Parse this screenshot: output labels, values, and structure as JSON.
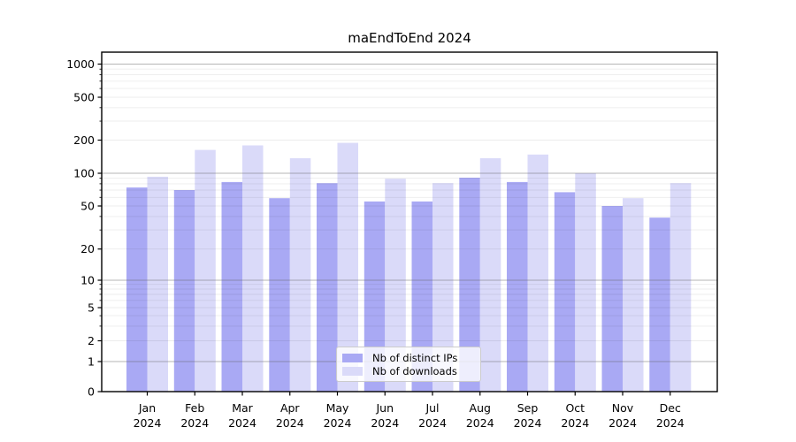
{
  "chart_data": {
    "type": "bar",
    "title": "maEndToEnd 2024",
    "categories": [
      "Jan",
      "Feb",
      "Mar",
      "Apr",
      "May",
      "Jun",
      "Jul",
      "Aug",
      "Sep",
      "Oct",
      "Nov",
      "Dec"
    ],
    "category_year": "2024",
    "series": [
      {
        "name": "Nb of distinct IPs",
        "color": "#a9a9f4",
        "values": [
          74,
          70,
          83,
          59,
          81,
          55,
          55,
          91,
          83,
          67,
          50,
          39
        ]
      },
      {
        "name": "Nb of downloads",
        "color": "#dadaf9",
        "values": [
          93,
          163,
          179,
          137,
          189,
          89,
          81,
          137,
          148,
          100,
          59,
          81
        ]
      }
    ],
    "xlabel": "",
    "ylabel": "",
    "y_axis": {
      "scale": "log-like with zero baseline",
      "ticks": [
        0,
        1,
        2,
        5,
        10,
        20,
        50,
        100,
        200,
        500,
        1000
      ],
      "ylim": [
        0,
        1000
      ]
    },
    "legend": {
      "position": "lower center"
    },
    "grid": true,
    "colors": {
      "major_gridline": "#b6b6b6",
      "minor_gridline": "#ececec",
      "axis": "#000000",
      "background": "#ffffff",
      "text": "#000000"
    }
  }
}
